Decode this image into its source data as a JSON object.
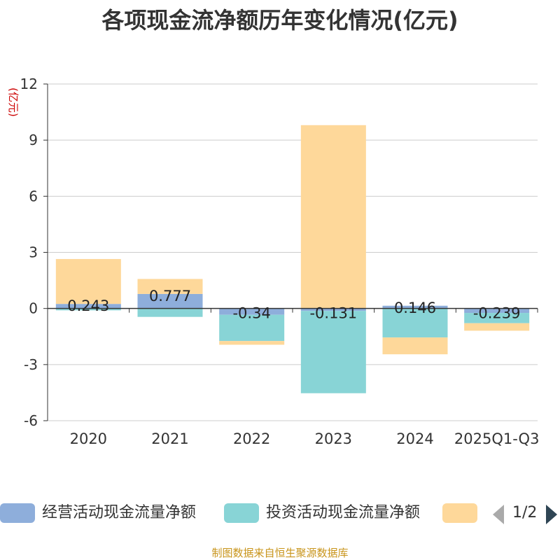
{
  "title": "各项现金流净额历年变化情况(亿元)",
  "source": "制图数据来自恒生聚源数据库",
  "legend": {
    "items": [
      {
        "label": "经营活动现金流量净额",
        "color": "#8eaedb"
      },
      {
        "label": "投资活动现金流量净额",
        "color": "#88d4d6"
      },
      {
        "label": "",
        "color": "#fed89a"
      }
    ],
    "page": "1/2"
  },
  "chart_data": {
    "type": "bar",
    "stacked": true,
    "ylabel": "(亿元)",
    "ylim": [
      -6,
      12
    ],
    "yticks": [
      -6,
      -3,
      0,
      3,
      6,
      9,
      12
    ],
    "grid": true,
    "legend_position": "bottom",
    "categories": [
      "2020",
      "2021",
      "2022",
      "2023",
      "2024",
      "2025Q1-Q3"
    ],
    "series": [
      {
        "name": "经营活动现金流量净额",
        "color": "#8eaedb",
        "values": [
          0.243,
          0.777,
          -0.34,
          -0.131,
          0.146,
          -0.239
        ],
        "labels": [
          "0.243",
          "0.777",
          "-0.34",
          "-0.131",
          "0.146",
          "-0.239"
        ]
      },
      {
        "name": "投资活动现金流量净额",
        "color": "#88d4d6",
        "values": [
          -0.1,
          -0.45,
          -1.4,
          -4.4,
          -1.55,
          -0.55
        ]
      },
      {
        "color": "#fed89a",
        "values": [
          2.4,
          0.8,
          -0.2,
          9.8,
          -0.9,
          -0.4
        ]
      }
    ]
  }
}
